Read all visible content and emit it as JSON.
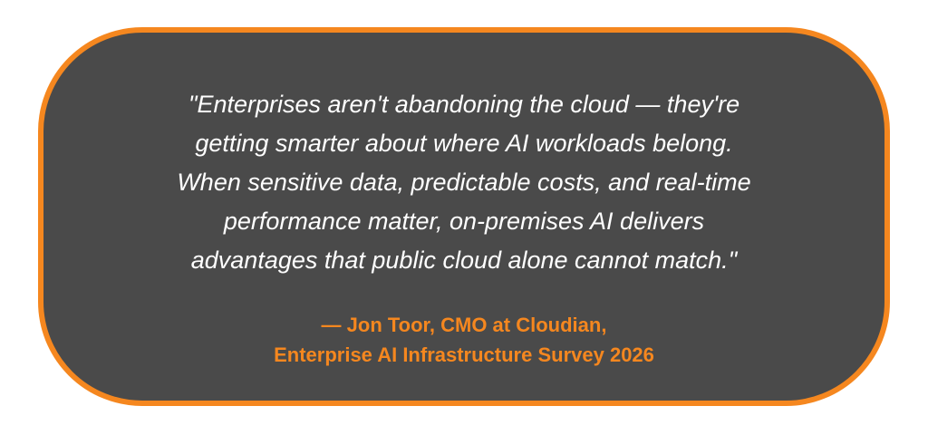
{
  "quote": {
    "lines": [
      "\"Enterprises aren't abandoning the cloud — they're",
      "getting smarter about where AI workloads belong.",
      "When sensitive data, predictable costs, and real-time",
      "performance matter, on-premises AI delivers",
      "advantages that public cloud alone cannot match.\""
    ]
  },
  "attribution": {
    "lines": [
      "— Jon Toor, CMO at Cloudian,",
      "Enterprise AI Infrastructure Survey 2026"
    ]
  }
}
